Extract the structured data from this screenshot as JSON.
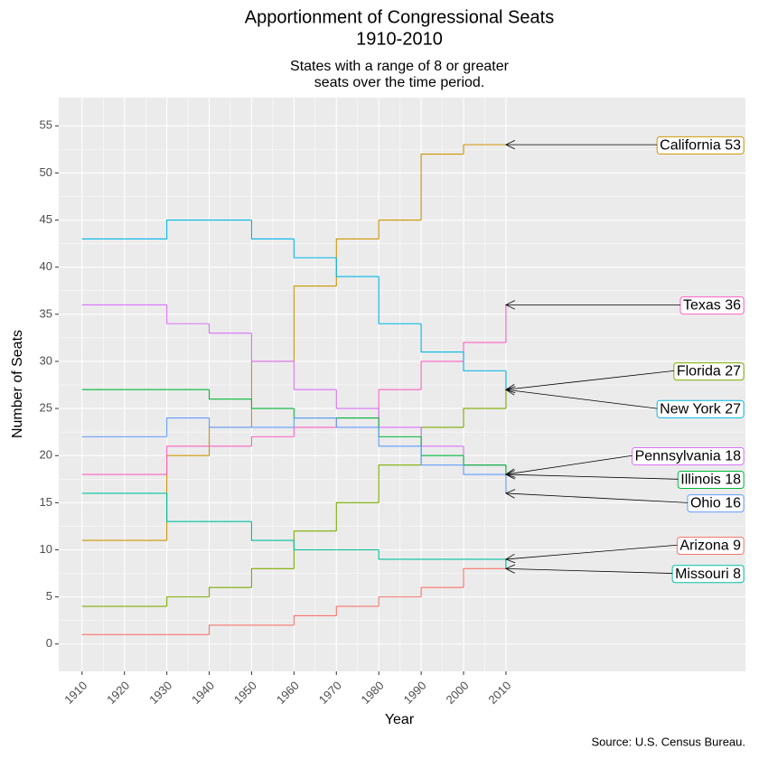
{
  "chart_data": {
    "type": "step",
    "title": [
      "Apportionment of Congressional Seats",
      "1910-2010"
    ],
    "subtitle": [
      "States with a range of 8 or greater",
      "seats over the time period."
    ],
    "x_label": "Year",
    "y_label": "Number of Seats",
    "caption": "Source: U.S. Census Bureau.",
    "x": [
      1910,
      1920,
      1930,
      1940,
      1950,
      1960,
      1970,
      1980,
      1990,
      2000,
      2010
    ],
    "xlim": [
      1904.5,
      2066.5
    ],
    "xticks": [
      1910,
      1920,
      1930,
      1940,
      1950,
      1960,
      1970,
      1980,
      1990,
      2000,
      2010
    ],
    "ylim": [
      -2.9,
      58
    ],
    "yticks": [
      0,
      5,
      10,
      15,
      20,
      25,
      30,
      35,
      40,
      45,
      50,
      55
    ],
    "grid": true,
    "series": [
      {
        "name": "California",
        "color": "#CD9600",
        "values": [
          11,
          11,
          20,
          23,
          30,
          38,
          43,
          45,
          52,
          53,
          53
        ],
        "value_labels": [
          null,
          null,
          null,
          null,
          null,
          null,
          null,
          null,
          null,
          null,
          "California 53"
        ]
      },
      {
        "name": "Texas",
        "color": "#FF61C3",
        "values": [
          18,
          18,
          21,
          21,
          22,
          23,
          24,
          27,
          30,
          32,
          36
        ],
        "value_labels": [
          null,
          null,
          null,
          null,
          null,
          null,
          null,
          null,
          null,
          null,
          "Texas 36"
        ]
      },
      {
        "name": "Florida",
        "color": "#7CAE00",
        "values": [
          4,
          4,
          5,
          6,
          8,
          12,
          15,
          19,
          23,
          25,
          27
        ],
        "value_labels": [
          null,
          null,
          null,
          null,
          null,
          null,
          null,
          null,
          null,
          null,
          "Florida 27"
        ]
      },
      {
        "name": "New York",
        "color": "#00B8E7",
        "values": [
          43,
          43,
          45,
          45,
          43,
          41,
          39,
          34,
          31,
          29,
          27
        ],
        "value_labels": [
          null,
          null,
          null,
          null,
          null,
          null,
          null,
          null,
          null,
          null,
          "New York 27"
        ]
      },
      {
        "name": "Pennsylvania",
        "color": "#DB72FB",
        "values": [
          36,
          36,
          34,
          33,
          30,
          27,
          25,
          23,
          21,
          19,
          18
        ],
        "value_labels": [
          null,
          null,
          null,
          null,
          null,
          null,
          null,
          null,
          null,
          null,
          "Pennsylvania 18"
        ]
      },
      {
        "name": "Illinois",
        "color": "#00BA38",
        "values": [
          27,
          27,
          27,
          26,
          25,
          24,
          24,
          22,
          20,
          19,
          18
        ],
        "value_labels": [
          null,
          null,
          null,
          null,
          null,
          null,
          null,
          null,
          null,
          null,
          "Illinois 18"
        ]
      },
      {
        "name": "Ohio",
        "color": "#619CFF",
        "values": [
          22,
          22,
          24,
          23,
          23,
          24,
          23,
          21,
          19,
          18,
          16
        ],
        "value_labels": [
          null,
          null,
          null,
          null,
          null,
          null,
          null,
          null,
          null,
          null,
          "Ohio 16"
        ]
      },
      {
        "name": "Arizona",
        "color": "#F8766D",
        "values": [
          1,
          1,
          1,
          2,
          2,
          3,
          4,
          5,
          6,
          8,
          9
        ],
        "value_labels": [
          null,
          null,
          null,
          null,
          null,
          null,
          null,
          null,
          null,
          null,
          "Arizona 9"
        ]
      },
      {
        "name": "Missouri",
        "color": "#00C19F",
        "values": [
          16,
          16,
          13,
          13,
          11,
          10,
          10,
          9,
          9,
          9,
          8
        ],
        "value_labels": [
          null,
          null,
          null,
          null,
          null,
          null,
          null,
          null,
          null,
          null,
          "Missouri 8"
        ]
      }
    ]
  }
}
